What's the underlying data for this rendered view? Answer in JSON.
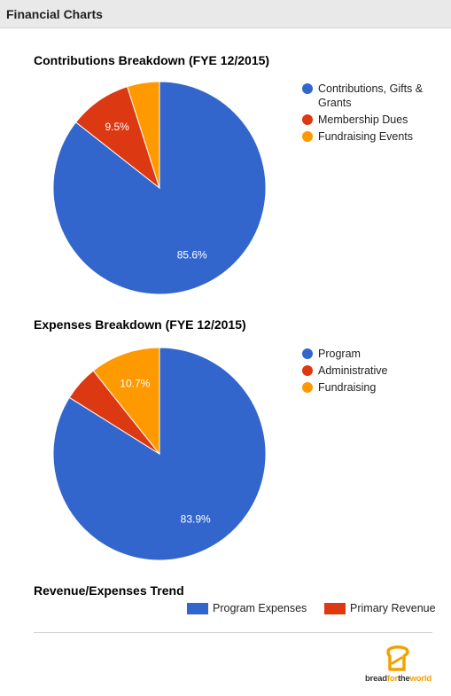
{
  "header": {
    "title": "Financial Charts"
  },
  "chart_data": [
    {
      "type": "pie",
      "title": "Contributions Breakdown (FYE 12/2015)",
      "slices": [
        {
          "label": "Contributions, Gifts & Grants",
          "value": 85.6,
          "color": "#3366cc",
          "data_label": "85.6%"
        },
        {
          "label": "Membership Dues",
          "value": 9.5,
          "color": "#dc3912",
          "data_label": "9.5%"
        },
        {
          "label": "Fundraising Events",
          "value": 4.9,
          "color": "#ff9900",
          "data_label": ""
        }
      ],
      "legend_position": "right"
    },
    {
      "type": "pie",
      "title": "Expenses Breakdown (FYE 12/2015)",
      "slices": [
        {
          "label": "Program",
          "value": 83.9,
          "color": "#3366cc",
          "data_label": "83.9%"
        },
        {
          "label": "Administrative",
          "value": 5.4,
          "color": "#dc3912",
          "data_label": ""
        },
        {
          "label": "Fundraising",
          "value": 10.7,
          "color": "#ff9900",
          "data_label": "10.7%"
        }
      ],
      "legend_position": "right"
    },
    {
      "type": "bar",
      "title": "Revenue/Expenses Trend",
      "series": [
        {
          "name": "Program Expenses",
          "color": "#3366cc",
          "values": []
        },
        {
          "name": "Primary Revenue",
          "color": "#dc3912",
          "values": []
        }
      ],
      "legend_position": "top-right"
    }
  ],
  "logo": {
    "text_part1": "bread",
    "text_part2": "for",
    "text_part3": "the",
    "text_part4": "world",
    "name": "bread-for-the-world-logo"
  }
}
